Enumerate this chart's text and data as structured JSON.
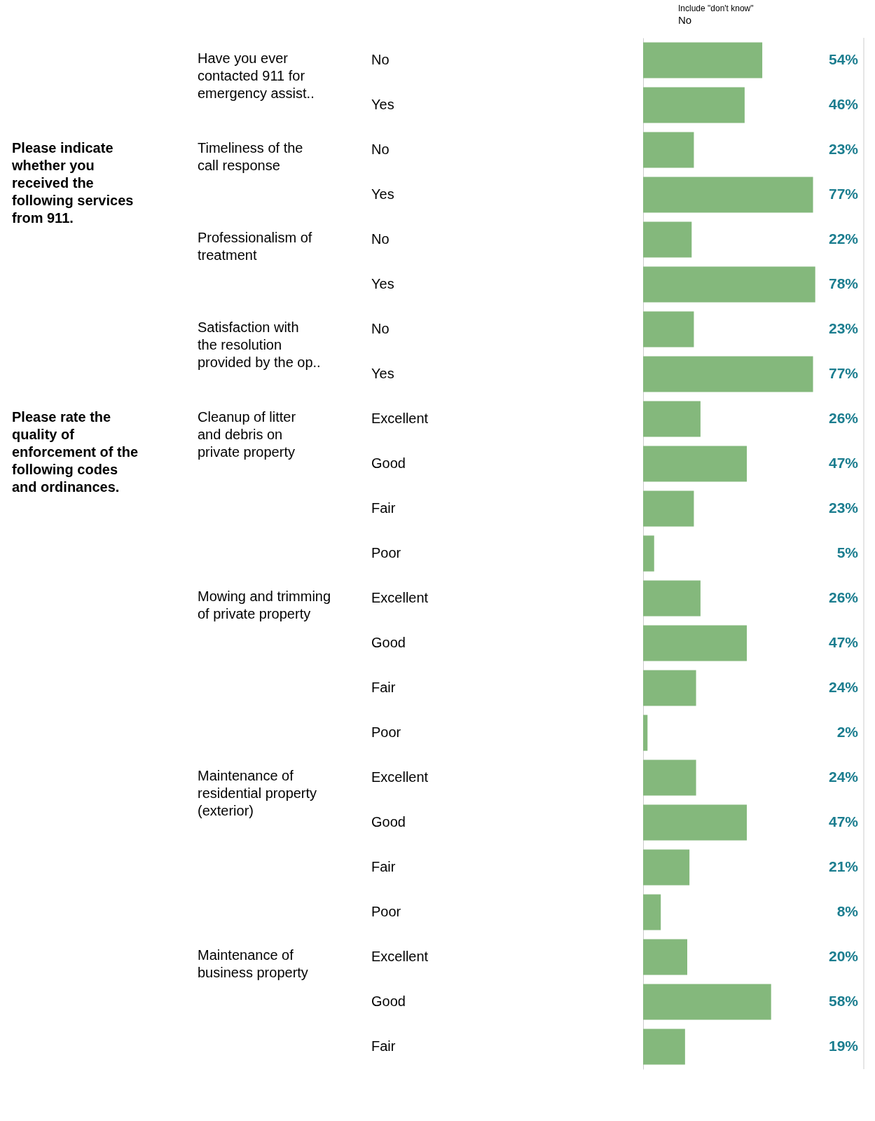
{
  "chart_data": {
    "type": "bar",
    "orientation": "horizontal",
    "title": "Include \"don't know\"",
    "subtitle": "No",
    "categories": [
      "No",
      "Yes",
      "No",
      "Yes",
      "No",
      "Yes",
      "No",
      "Yes",
      "Excellent",
      "Good",
      "Fair",
      "Poor",
      "Excellent",
      "Good",
      "Fair",
      "Poor",
      "Excellent",
      "Good",
      "Fair",
      "Poor",
      "Excellent",
      "Good",
      "Fair"
    ],
    "values": [
      54,
      46,
      23,
      77,
      22,
      78,
      23,
      77,
      26,
      47,
      23,
      5,
      26,
      47,
      24,
      2,
      24,
      47,
      21,
      8,
      20,
      58,
      19
    ],
    "value_labels": [
      "54%",
      "46%",
      "23%",
      "77%",
      "22%",
      "78%",
      "23%",
      "77%",
      "26%",
      "47%",
      "23%",
      "5%",
      "26%",
      "47%",
      "24%",
      "2%",
      "24%",
      "47%",
      "21%",
      "8%",
      "20%",
      "58%",
      "19%"
    ],
    "color": "#84b87c",
    "xlim": [
      0,
      100
    ],
    "tick_labels": false,
    "grid": false,
    "annotations": [
      "Have you ever contacted 911 for emergency assist..",
      "Please indicate whether you received the following services from 911.",
      "Timeliness of the call response",
      "Professionalism of treatment",
      "Satisfaction with the resolution provided by the op..",
      "Please rate the quality of enforcement of the following codes and ordinances.",
      "Cleanup of litter and debris on private property",
      "Mowing and trimming of private property",
      "Maintenance of residential property (exterior)",
      "Maintenance of business property"
    ]
  }
}
